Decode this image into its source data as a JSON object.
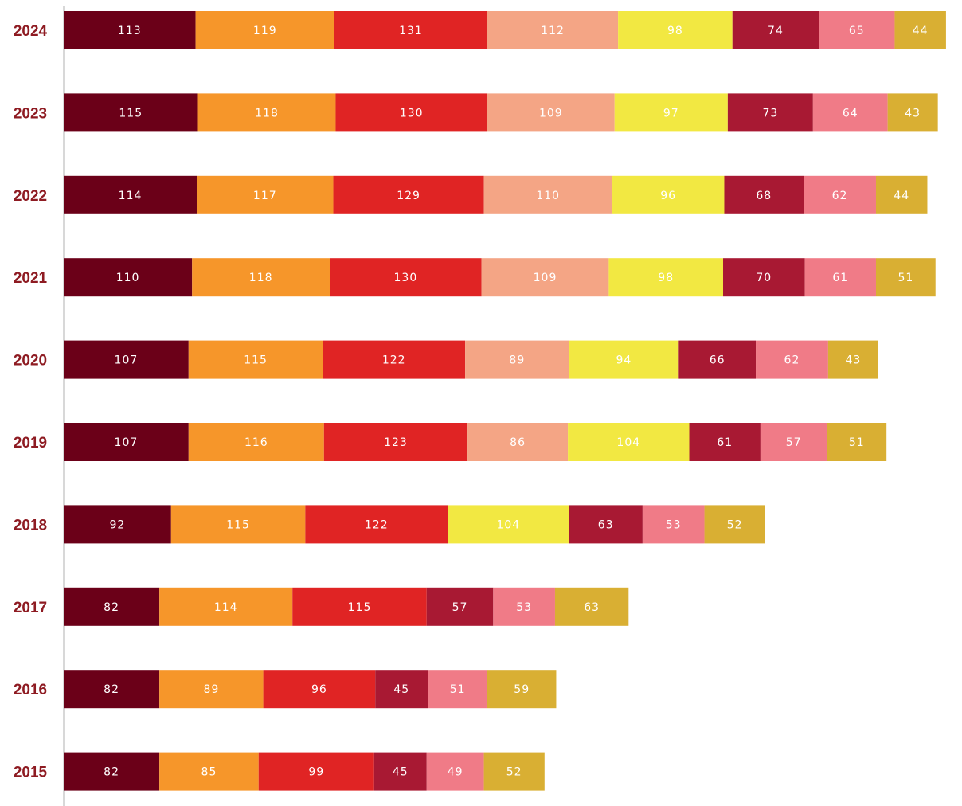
{
  "chart_data": {
    "type": "bar",
    "orientation": "horizontal",
    "stacked": true,
    "legend": "none",
    "grid": false,
    "rows": [
      {
        "year": "2024",
        "segments": [
          {
            "value": 113,
            "category": 0
          },
          {
            "value": 119,
            "category": 1
          },
          {
            "value": 131,
            "category": 2
          },
          {
            "value": 112,
            "category": 3
          },
          {
            "value": 98,
            "category": 4
          },
          {
            "value": 74,
            "category": 5
          },
          {
            "value": 65,
            "category": 6
          },
          {
            "value": 44,
            "category": 7
          }
        ]
      },
      {
        "year": "2023",
        "segments": [
          {
            "value": 115,
            "category": 0
          },
          {
            "value": 118,
            "category": 1
          },
          {
            "value": 130,
            "category": 2
          },
          {
            "value": 109,
            "category": 3
          },
          {
            "value": 97,
            "category": 4
          },
          {
            "value": 73,
            "category": 5
          },
          {
            "value": 64,
            "category": 6
          },
          {
            "value": 43,
            "category": 7
          }
        ]
      },
      {
        "year": "2022",
        "segments": [
          {
            "value": 114,
            "category": 0
          },
          {
            "value": 117,
            "category": 1
          },
          {
            "value": 129,
            "category": 2
          },
          {
            "value": 110,
            "category": 3
          },
          {
            "value": 96,
            "category": 4
          },
          {
            "value": 68,
            "category": 5
          },
          {
            "value": 62,
            "category": 6
          },
          {
            "value": 44,
            "category": 7
          }
        ]
      },
      {
        "year": "2021",
        "segments": [
          {
            "value": 110,
            "category": 0
          },
          {
            "value": 118,
            "category": 1
          },
          {
            "value": 130,
            "category": 2
          },
          {
            "value": 109,
            "category": 3
          },
          {
            "value": 98,
            "category": 4
          },
          {
            "value": 70,
            "category": 5
          },
          {
            "value": 61,
            "category": 6
          },
          {
            "value": 51,
            "category": 7
          }
        ]
      },
      {
        "year": "2020",
        "segments": [
          {
            "value": 107,
            "category": 0
          },
          {
            "value": 115,
            "category": 1
          },
          {
            "value": 122,
            "category": 2
          },
          {
            "value": 89,
            "category": 3
          },
          {
            "value": 94,
            "category": 4
          },
          {
            "value": 66,
            "category": 5
          },
          {
            "value": 62,
            "category": 6
          },
          {
            "value": 43,
            "category": 7
          }
        ]
      },
      {
        "year": "2019",
        "segments": [
          {
            "value": 107,
            "category": 0
          },
          {
            "value": 116,
            "category": 1
          },
          {
            "value": 123,
            "category": 2
          },
          {
            "value": 86,
            "category": 3
          },
          {
            "value": 104,
            "category": 4
          },
          {
            "value": 61,
            "category": 5
          },
          {
            "value": 57,
            "category": 6
          },
          {
            "value": 51,
            "category": 7
          }
        ]
      },
      {
        "year": "2018",
        "segments": [
          {
            "value": 92,
            "category": 0
          },
          {
            "value": 115,
            "category": 1
          },
          {
            "value": 122,
            "category": 2
          },
          {
            "value": 104,
            "category": 4
          },
          {
            "value": 63,
            "category": 5
          },
          {
            "value": 53,
            "category": 6
          },
          {
            "value": 52,
            "category": 7
          }
        ]
      },
      {
        "year": "2017",
        "segments": [
          {
            "value": 82,
            "category": 0
          },
          {
            "value": 114,
            "category": 1
          },
          {
            "value": 115,
            "category": 2
          },
          {
            "value": 57,
            "category": 5
          },
          {
            "value": 53,
            "category": 6
          },
          {
            "value": 63,
            "category": 7
          }
        ]
      },
      {
        "year": "2016",
        "segments": [
          {
            "value": 82,
            "category": 0
          },
          {
            "value": 89,
            "category": 1
          },
          {
            "value": 96,
            "category": 2
          },
          {
            "value": 45,
            "category": 5
          },
          {
            "value": 51,
            "category": 6
          },
          {
            "value": 59,
            "category": 7
          }
        ]
      },
      {
        "year": "2015",
        "segments": [
          {
            "value": 82,
            "category": 0
          },
          {
            "value": 85,
            "category": 1
          },
          {
            "value": 99,
            "category": 2
          },
          {
            "value": 45,
            "category": 5
          },
          {
            "value": 49,
            "category": 6
          },
          {
            "value": 52,
            "category": 7
          }
        ]
      }
    ],
    "category_colors": [
      "#6b0018",
      "#f6962a",
      "#e02424",
      "#f4a585",
      "#f2e842",
      "#a81933",
      "#f07b87",
      "#d9af33"
    ],
    "year_label_color": "#8e1b22",
    "axis_line_color": "#cccccc"
  }
}
